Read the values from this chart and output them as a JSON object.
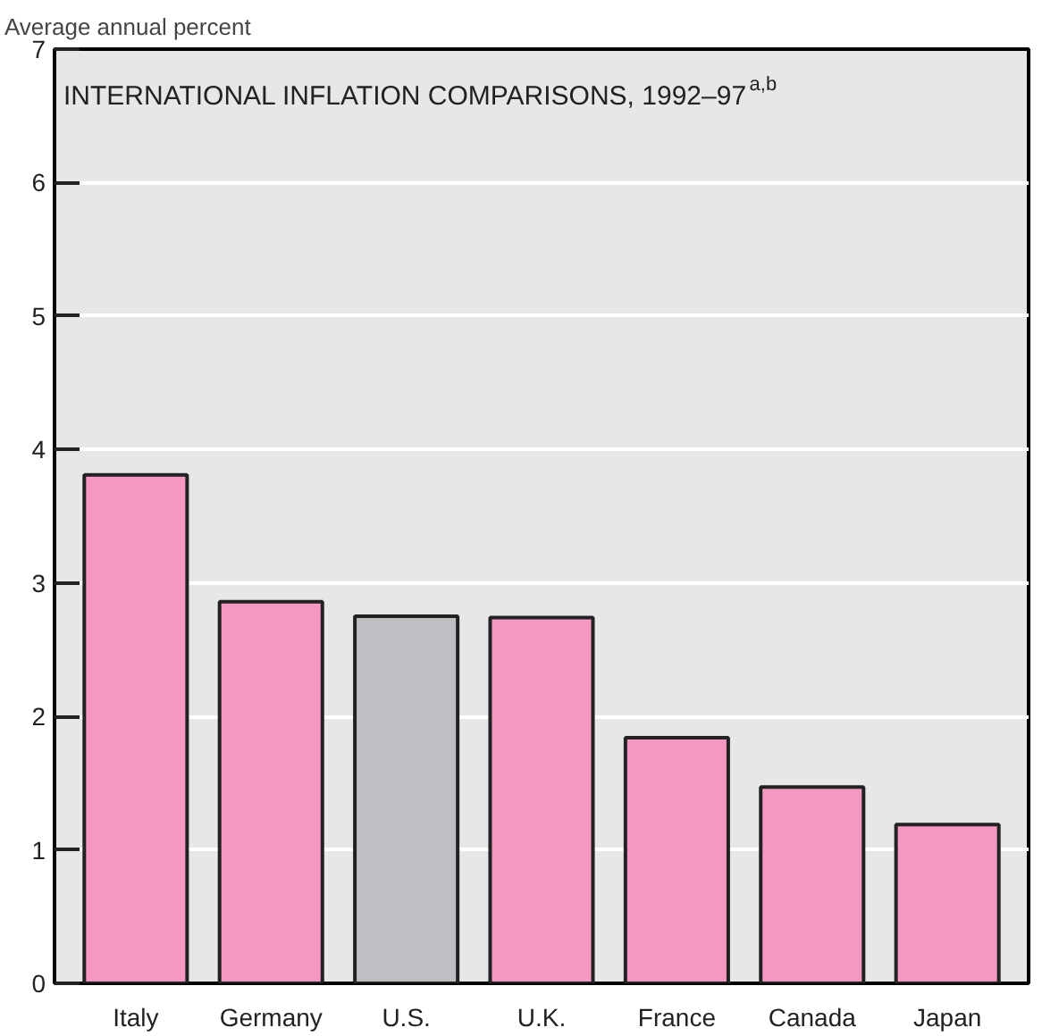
{
  "chart_data": {
    "type": "bar",
    "title": "INTERNATIONAL INFLATION COMPARISONS, 1992–97$^{a,b}$",
    "ylabel": "Average annual percent",
    "categories": [
      "Italy",
      "Germany",
      "U.S.",
      "U.K.",
      "France",
      "Canada",
      "Japan"
    ],
    "values": [
      3.81,
      2.86,
      2.75,
      2.74,
      1.84,
      1.47,
      1.19
    ],
    "colors": [
      "#f498c2",
      "#f498c2",
      "#bebfc3",
      "#f498c2",
      "#f498c2",
      "#f498c2",
      "#f498c2"
    ],
    "ylim": [
      0,
      7
    ],
    "yticks": [
      0,
      1,
      2,
      3,
      4,
      5,
      6,
      7
    ],
    "grid": "y"
  }
}
